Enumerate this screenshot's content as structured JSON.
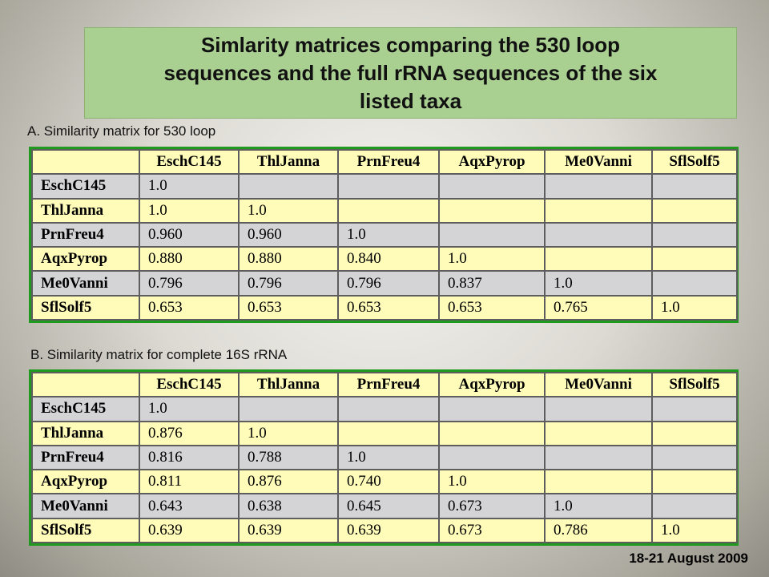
{
  "title": {
    "line1": "Simlarity matrices comparing the 530 loop",
    "line2": "sequences and the full rRNA sequences of the six",
    "line3": "listed taxa"
  },
  "matrix_a": {
    "caption": "A. Similarity matrix for 530 loop",
    "headers": [
      "EschC145",
      "ThlJanna",
      "PrnFreu4",
      "AqxPyrop",
      "Me0Vanni",
      "SflSolf5"
    ],
    "rows": [
      {
        "label": "EschC145",
        "cells": [
          "1.0",
          "",
          "",
          "",
          "",
          ""
        ]
      },
      {
        "label": "ThlJanna",
        "cells": [
          "1.0",
          "1.0",
          "",
          "",
          "",
          ""
        ]
      },
      {
        "label": "PrnFreu4",
        "cells": [
          "0.960",
          "0.960",
          "1.0",
          "",
          "",
          ""
        ]
      },
      {
        "label": "AqxPyrop",
        "cells": [
          "0.880",
          "0.880",
          "0.840",
          "1.0",
          "",
          ""
        ]
      },
      {
        "label": "Me0Vanni",
        "cells": [
          "0.796",
          "0.796",
          "0.796",
          "0.837",
          "1.0",
          ""
        ]
      },
      {
        "label": "SflSolf5",
        "cells": [
          "0.653",
          "0.653",
          "0.653",
          "0.653",
          "0.765",
          "1.0"
        ]
      }
    ]
  },
  "matrix_b": {
    "caption": "B. Similarity matrix for complete 16S rRNA",
    "headers": [
      "EschC145",
      "ThlJanna",
      "PrnFreu4",
      "AqxPyrop",
      "Me0Vanni",
      "SflSolf5"
    ],
    "rows": [
      {
        "label": "EschC145",
        "cells": [
          "1.0",
          "",
          "",
          "",
          "",
          ""
        ]
      },
      {
        "label": "ThlJanna",
        "cells": [
          "0.876",
          "1.0",
          "",
          "",
          "",
          ""
        ]
      },
      {
        "label": "PrnFreu4",
        "cells": [
          "0.816",
          "0.788",
          "1.0",
          "",
          "",
          ""
        ]
      },
      {
        "label": "AqxPyrop",
        "cells": [
          "0.811",
          "0.876",
          "0.740",
          "1.0",
          "",
          ""
        ]
      },
      {
        "label": "Me0Vanni",
        "cells": [
          "0.643",
          "0.638",
          "0.645",
          "0.673",
          "1.0",
          ""
        ]
      },
      {
        "label": "SflSolf5",
        "cells": [
          "0.639",
          "0.639",
          "0.639",
          "0.673",
          "0.786",
          "1.0"
        ]
      }
    ]
  },
  "footer": "18-21 August 2009",
  "colors": {
    "title_bg": "#a9cf91",
    "row_yellow": "#fffcb9",
    "row_gray": "#d4d4d6",
    "table_border": "#1f9a1f"
  }
}
